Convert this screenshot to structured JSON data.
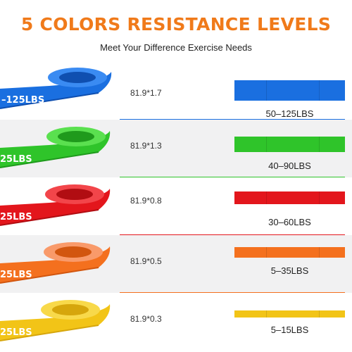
{
  "header": {
    "title": "5 COLORS RESISTANCE LEVELS",
    "title_color": "#f07a1a",
    "subtitle": "Meet Your Difference Exercise Needs"
  },
  "bands": [
    {
      "dimensions": "81.9*1.7",
      "level": "50–125LBS",
      "coil_label": "–125LBS",
      "color": "#1a6fe0",
      "highlight": "#3a8bf2",
      "shadow": "#0f4fb0"
    },
    {
      "dimensions": "81.9*1.3",
      "level": "40–90LBS",
      "coil_label": "25LBS",
      "color": "#2fc42a",
      "highlight": "#5ae04f",
      "shadow": "#1f9a1c"
    },
    {
      "dimensions": "81.9*0.8",
      "level": "30–60LBS",
      "coil_label": "25LBS",
      "color": "#e3161c",
      "highlight": "#f2454a",
      "shadow": "#b10d12"
    },
    {
      "dimensions": "81.9*0.5",
      "level": "5–35LBS",
      "coil_label": "25LBS",
      "color": "#f4701e",
      "highlight": "#f99a6a",
      "shadow": "#d2560f"
    },
    {
      "dimensions": "81.9*0.3",
      "level": "5–15LBS",
      "coil_label": "25LBS",
      "color": "#f2c417",
      "highlight": "#f8d94a",
      "shadow": "#d6a60c"
    }
  ]
}
